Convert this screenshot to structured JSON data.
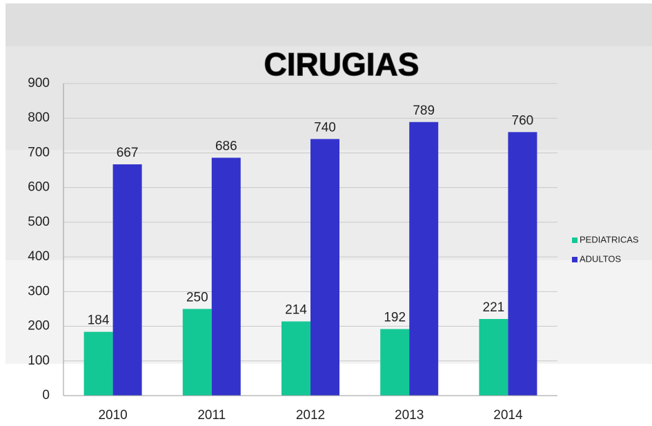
{
  "chart_data": {
    "type": "bar",
    "title": "CIRUGIAS",
    "categories": [
      "2010",
      "2011",
      "2012",
      "2013",
      "2014"
    ],
    "series": [
      {
        "name": "PEDIATRICAS",
        "color": "#14c896",
        "values": [
          184,
          250,
          214,
          192,
          221
        ]
      },
      {
        "name": "ADULTOS",
        "color": "#3333cc",
        "values": [
          667,
          686,
          740,
          789,
          760
        ]
      }
    ],
    "ylim": [
      0,
      900
    ],
    "yticks": [
      0,
      100,
      200,
      300,
      400,
      500,
      600,
      700,
      800,
      900
    ],
    "grid": true,
    "legend": "right"
  }
}
